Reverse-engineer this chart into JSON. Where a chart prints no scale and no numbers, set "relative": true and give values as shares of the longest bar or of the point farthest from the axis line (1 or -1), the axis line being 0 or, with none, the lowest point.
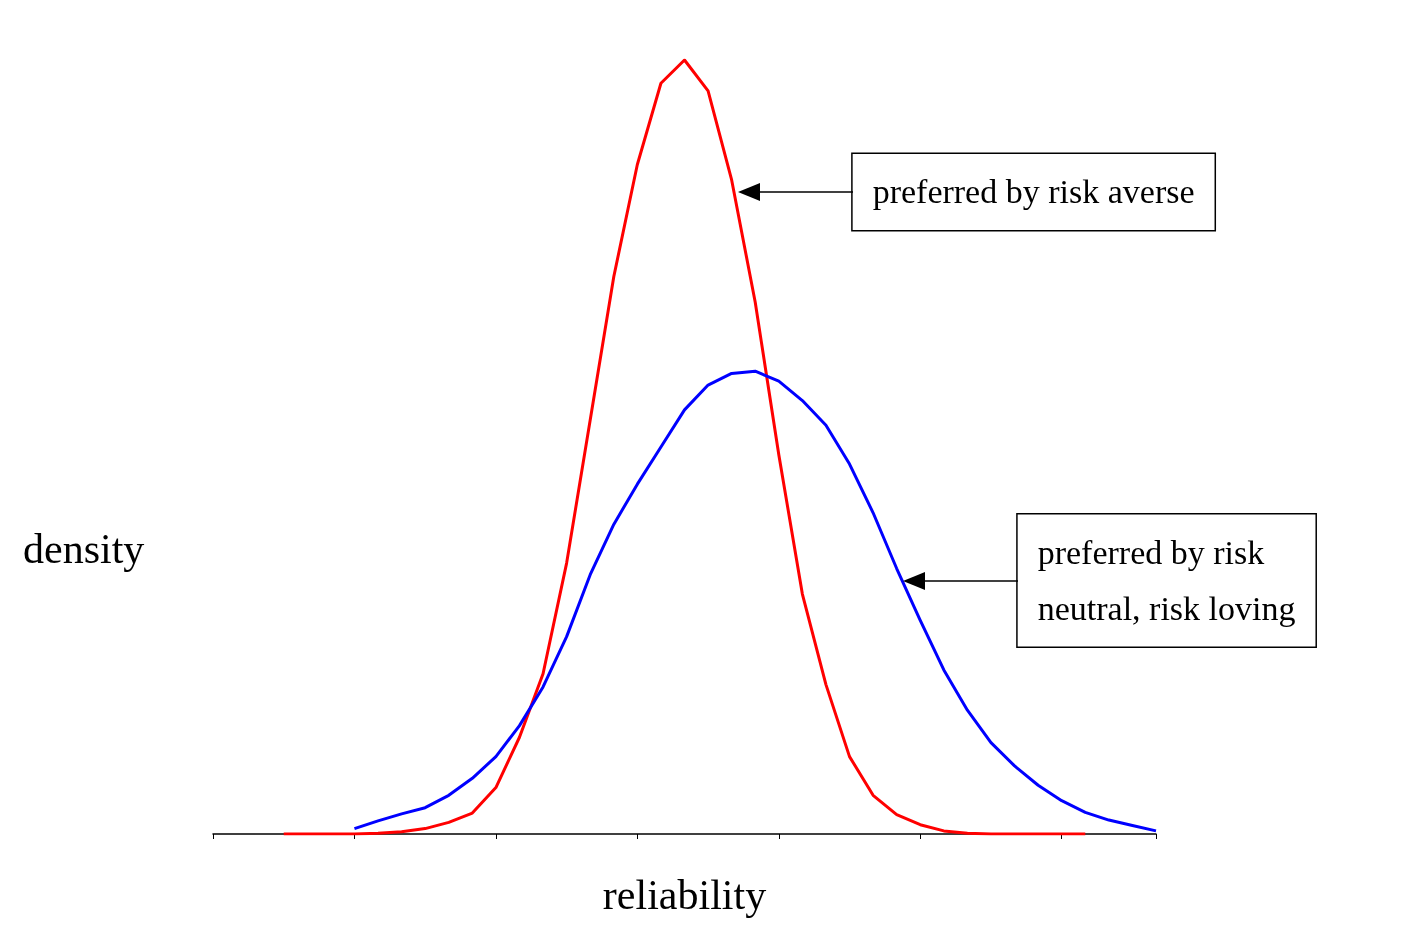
{
  "chart_data": {
    "type": "line",
    "relative": true,
    "xlabel": "reliability",
    "ylabel": "density",
    "line_style": "solid",
    "categories": [
      null,
      null,
      null,
      null,
      null,
      null,
      null,
      null,
      null,
      null,
      null,
      null,
      null,
      null,
      null,
      null,
      null,
      null,
      null,
      null,
      null,
      null,
      null,
      null,
      null,
      null,
      null,
      null,
      null,
      null,
      null,
      null,
      null,
      null,
      null,
      null,
      null,
      null,
      null,
      null,
      null
    ],
    "series": [
      {
        "color": "#ff0000",
        "values": [
          null,
          null,
          null,
          0,
          0,
          0,
          0,
          0.001,
          0.003,
          0.007,
          0.015,
          0.027,
          0.06,
          0.125,
          0.207,
          0.35,
          0.535,
          0.72,
          0.865,
          0.97,
          1.0,
          0.96,
          0.845,
          0.687,
          0.49,
          0.31,
          0.193,
          0.1,
          0.05,
          0.025,
          0.012,
          0.004,
          0.001,
          0,
          0,
          0,
          0,
          0,
          null,
          null,
          null
        ]
      },
      {
        "color": "#0000ff",
        "values": [
          null,
          null,
          null,
          null,
          null,
          null,
          0.007,
          0.017,
          0.026,
          0.034,
          0.05,
          0.072,
          0.1,
          0.14,
          0.19,
          0.255,
          0.335,
          0.4,
          0.452,
          0.5,
          0.548,
          0.58,
          0.595,
          0.598,
          0.585,
          0.56,
          0.528,
          0.478,
          0.415,
          0.343,
          0.276,
          0.212,
          0.16,
          0.118,
          0.088,
          0.063,
          0.043,
          0.028,
          0.018,
          0.011,
          0.004
        ]
      }
    ],
    "annotations": [
      "preferred by risk averse",
      "preferred by risk\nneutral, risk loving"
    ]
  }
}
